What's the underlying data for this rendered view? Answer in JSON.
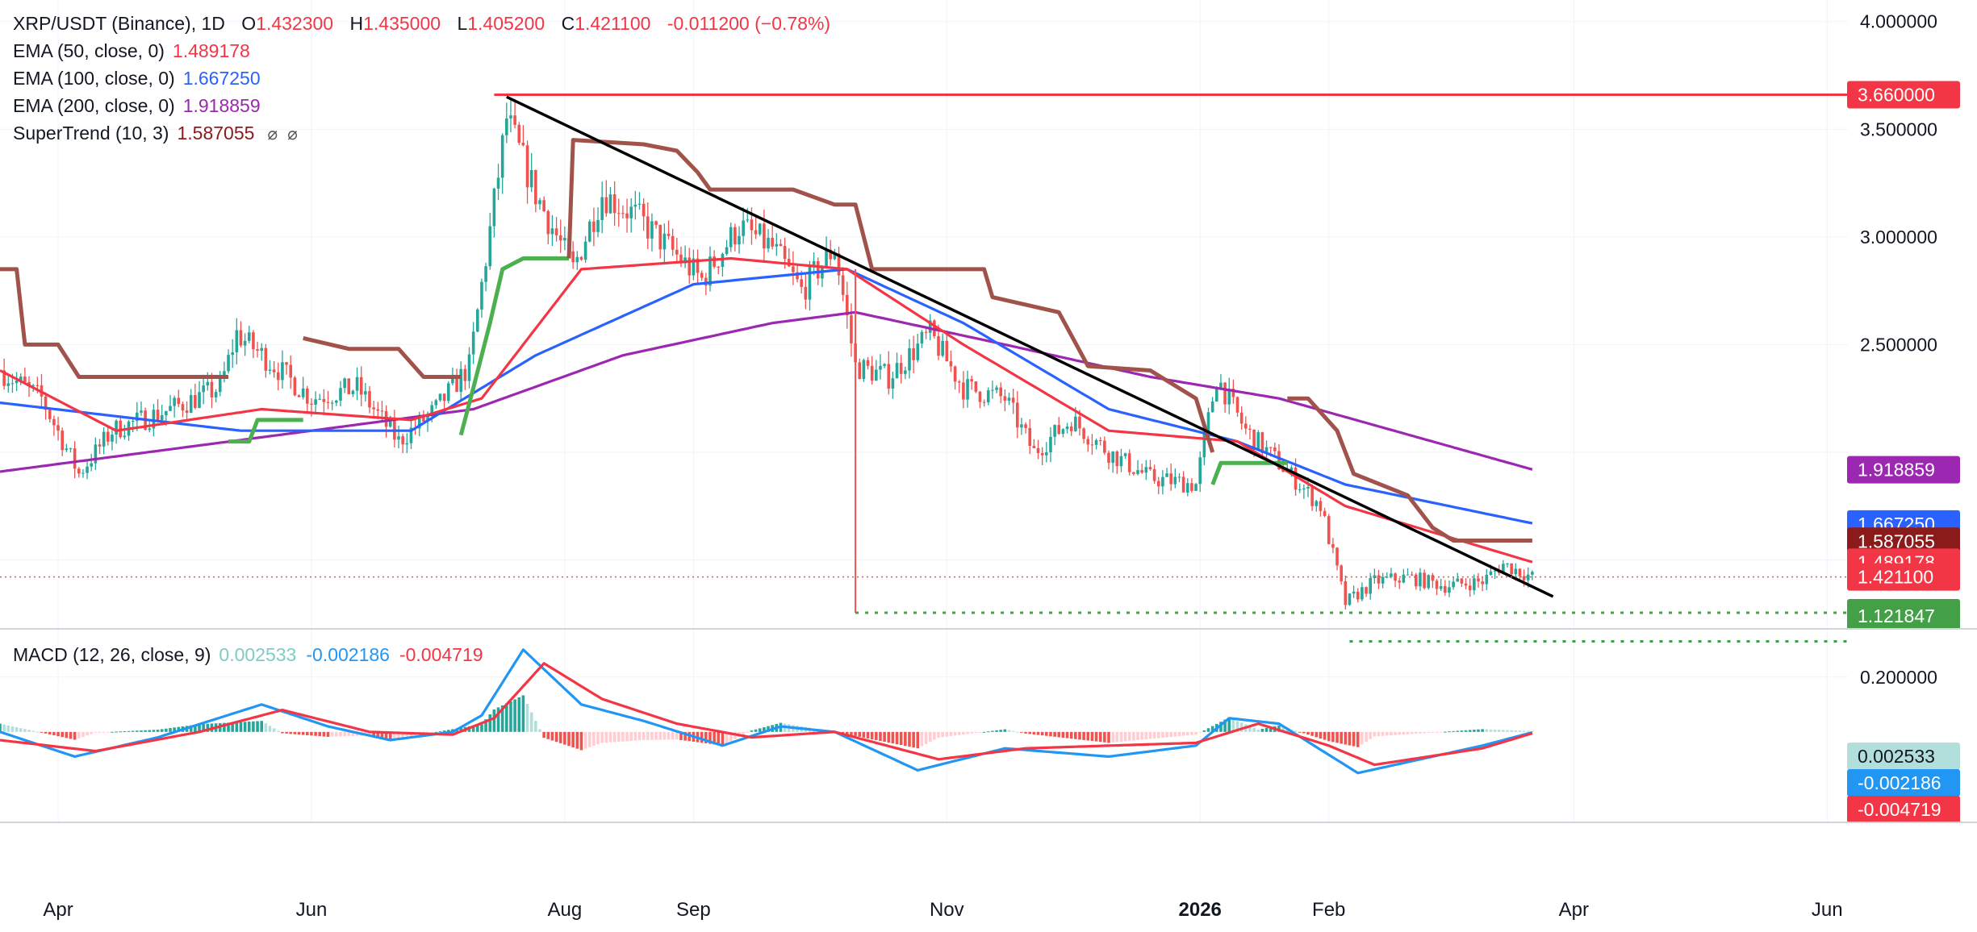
{
  "header": {
    "symbol": "XRP/USDT (Binance), 1D",
    "o_label": "O",
    "o": "1.432300",
    "h_label": "H",
    "h": "1.435000",
    "l_label": "L",
    "l": "1.405200",
    "c_label": "C",
    "c": "1.421100",
    "change": "-0.011200 (−0.78%)"
  },
  "indicators": {
    "ema50": {
      "label": "EMA (50, close, 0)",
      "value": "1.489178"
    },
    "ema100": {
      "label": "EMA (100, close, 0)",
      "value": "1.667250"
    },
    "ema200": {
      "label": "EMA (200, close, 0)",
      "value": "1.918859"
    },
    "supertrend": {
      "label": "SuperTrend (10, 3)",
      "value": "1.587055",
      "icon1": "⌀",
      "icon2": "⌀"
    },
    "macd": {
      "label": "MACD (12, 26, close, 9)",
      "hist": "0.002533",
      "macd": "-0.002186",
      "signal": "-0.004719"
    }
  },
  "colors": {
    "ema50": "#f23645",
    "ema100": "#2962ff",
    "ema200": "#9c27b0",
    "st_bear": "#a0524b",
    "st_bull": "#4caf50",
    "up": "#26a69a",
    "down": "#ef5350",
    "macd_line": "#2196f3",
    "signal_line": "#f23645",
    "hist_up_strong": "#26a69a",
    "hist_up_weak": "#b2dfdb",
    "hist_down_strong": "#ef5350",
    "hist_down_weak": "#ffcdd2",
    "resistance": "#f23645",
    "trendline": "#000000",
    "support": "#43a047"
  },
  "x_axis": {
    "ticks": [
      {
        "label": "Apr",
        "date": "2025-04-01"
      },
      {
        "label": "Jun",
        "date": "2025-06-01"
      },
      {
        "label": "Aug",
        "date": "2025-08-01"
      },
      {
        "label": "Sep",
        "date": "2025-09-01"
      },
      {
        "label": "Nov",
        "date": "2025-11-01"
      },
      {
        "label": "2026",
        "date": "2026-01-01",
        "bold": true
      },
      {
        "label": "Feb",
        "date": "2026-02-01"
      },
      {
        "label": "Apr",
        "date": "2026-04-01"
      },
      {
        "label": "Jun",
        "date": "2026-06-01"
      }
    ]
  },
  "price_axis": {
    "ticks": [
      "4.000000",
      "3.500000",
      "3.000000",
      "2.500000"
    ],
    "tick_values": [
      4.0,
      3.5,
      3.0,
      2.5
    ],
    "range": [
      1.18,
      4.1
    ]
  },
  "macd_axis": {
    "ticks": [
      "0.200000"
    ],
    "tick_values": [
      0.2
    ],
    "range": [
      -0.33,
      0.37
    ]
  },
  "badges": {
    "resistance": "3.660000",
    "ema200": "1.918859",
    "ema100": "1.667250",
    "supertrend": "1.587055",
    "ema50": "1.489178",
    "close": "1.421100",
    "support1": "1.254956",
    "support2": "1.121847",
    "macd_hist": "0.002533",
    "macd_line": "-0.002186",
    "macd_signal": "-0.004719"
  },
  "chart_data": {
    "type": "line",
    "title": "XRP/USDT (Binance), 1D",
    "x_range": [
      "2025-03-18",
      "2026-06-06"
    ],
    "ylim": [
      1.18,
      4.1
    ],
    "key_levels": {
      "resistance": 3.66,
      "support": [
        1.254956,
        1.121847
      ],
      "trendline_points": [
        [
          "2025-07-18",
          3.65
        ],
        [
          "2026-03-27",
          1.33
        ]
      ]
    },
    "ohlc_last": {
      "open": 1.4323,
      "high": 1.435,
      "low": 1.4052,
      "close": 1.4211
    },
    "close_anchors": [
      [
        "2025-03-18",
        2.38
      ],
      [
        "2025-03-28",
        2.25
      ],
      [
        "2025-04-06",
        1.9
      ],
      [
        "2025-04-14",
        2.1
      ],
      [
        "2025-04-28",
        2.2
      ],
      [
        "2025-05-10",
        2.3
      ],
      [
        "2025-05-14",
        2.55
      ],
      [
        "2025-05-22",
        2.42
      ],
      [
        "2025-06-01",
        2.25
      ],
      [
        "2025-06-12",
        2.3
      ],
      [
        "2025-06-22",
        2.05
      ],
      [
        "2025-07-01",
        2.2
      ],
      [
        "2025-07-09",
        2.4
      ],
      [
        "2025-07-13",
        2.9
      ],
      [
        "2025-07-18",
        3.55
      ],
      [
        "2025-07-25",
        3.2
      ],
      [
        "2025-08-03",
        2.85
      ],
      [
        "2025-08-10",
        3.2
      ],
      [
        "2025-08-18",
        3.1
      ],
      [
        "2025-08-26",
        2.95
      ],
      [
        "2025-09-03",
        2.8
      ],
      [
        "2025-09-12",
        3.05
      ],
      [
        "2025-09-20",
        2.95
      ],
      [
        "2025-09-27",
        2.75
      ],
      [
        "2025-10-05",
        2.95
      ],
      [
        "2025-10-10",
        2.4
      ],
      [
        "2025-10-18",
        2.35
      ],
      [
        "2025-10-28",
        2.55
      ],
      [
        "2025-11-05",
        2.3
      ],
      [
        "2025-11-15",
        2.25
      ],
      [
        "2025-11-22",
        2.0
      ],
      [
        "2025-12-01",
        2.15
      ],
      [
        "2025-12-10",
        2.0
      ],
      [
        "2025-12-20",
        1.88
      ],
      [
        "2025-12-31",
        1.85
      ],
      [
        "2026-01-05",
        2.35
      ],
      [
        "2026-01-12",
        2.1
      ],
      [
        "2026-01-20",
        1.95
      ],
      [
        "2026-01-30",
        1.75
      ],
      [
        "2026-02-05",
        1.3
      ],
      [
        "2026-02-12",
        1.4
      ],
      [
        "2026-02-20",
        1.42
      ],
      [
        "2026-03-01",
        1.38
      ],
      [
        "2026-03-10",
        1.4
      ],
      [
        "2026-03-15",
        1.48
      ],
      [
        "2026-03-22",
        1.42
      ]
    ],
    "ema200_anchors": [
      [
        "2025-03-18",
        1.91
      ],
      [
        "2025-06-01",
        2.1
      ],
      [
        "2025-07-10",
        2.2
      ],
      [
        "2025-08-15",
        2.45
      ],
      [
        "2025-09-20",
        2.6
      ],
      [
        "2025-10-10",
        2.65
      ],
      [
        "2025-11-15",
        2.5
      ],
      [
        "2025-12-20",
        2.35
      ],
      [
        "2026-01-20",
        2.25
      ],
      [
        "2026-03-22",
        1.92
      ]
    ],
    "ema100_anchors": [
      [
        "2025-03-18",
        2.23
      ],
      [
        "2025-05-15",
        2.1
      ],
      [
        "2025-06-25",
        2.1
      ],
      [
        "2025-07-25",
        2.45
      ],
      [
        "2025-09-01",
        2.78
      ],
      [
        "2025-10-08",
        2.85
      ],
      [
        "2025-11-05",
        2.6
      ],
      [
        "2025-12-10",
        2.2
      ],
      [
        "2026-01-10",
        2.05
      ],
      [
        "2026-02-05",
        1.85
      ],
      [
        "2026-03-22",
        1.67
      ]
    ],
    "ema50_anchors": [
      [
        "2025-03-18",
        2.38
      ],
      [
        "2025-04-15",
        2.1
      ],
      [
        "2025-05-20",
        2.2
      ],
      [
        "2025-06-25",
        2.15
      ],
      [
        "2025-07-12",
        2.25
      ],
      [
        "2025-08-05",
        2.85
      ],
      [
        "2025-09-10",
        2.9
      ],
      [
        "2025-10-08",
        2.85
      ],
      [
        "2025-11-05",
        2.5
      ],
      [
        "2025-12-10",
        2.1
      ],
      [
        "2026-01-10",
        2.05
      ],
      [
        "2026-02-05",
        1.75
      ],
      [
        "2026-03-22",
        1.49
      ]
    ],
    "supertrend_segments": [
      {
        "trend": "bear",
        "points": [
          [
            "2025-03-18",
            2.85
          ],
          [
            "2025-03-22",
            2.85
          ],
          [
            "2025-03-24",
            2.5
          ],
          [
            "2025-04-01",
            2.5
          ],
          [
            "2025-04-06",
            2.35
          ],
          [
            "2025-05-12",
            2.35
          ]
        ]
      },
      {
        "trend": "bull",
        "points": [
          [
            "2025-05-12",
            2.05
          ],
          [
            "2025-05-17",
            2.05
          ],
          [
            "2025-05-19",
            2.15
          ],
          [
            "2025-05-30",
            2.15
          ]
        ]
      },
      {
        "trend": "bear",
        "points": [
          [
            "2025-05-30",
            2.53
          ],
          [
            "2025-06-10",
            2.48
          ],
          [
            "2025-06-22",
            2.48
          ],
          [
            "2025-06-28",
            2.35
          ],
          [
            "2025-07-07",
            2.35
          ]
        ]
      },
      {
        "trend": "bull",
        "points": [
          [
            "2025-07-07",
            2.08
          ],
          [
            "2025-07-10",
            2.3
          ],
          [
            "2025-07-14",
            2.6
          ],
          [
            "2025-07-17",
            2.85
          ],
          [
            "2025-07-22",
            2.9
          ],
          [
            "2025-08-02",
            2.9
          ]
        ]
      },
      {
        "trend": "bear",
        "points": [
          [
            "2025-08-02",
            2.9
          ],
          [
            "2025-08-03",
            3.45
          ],
          [
            "2025-08-20",
            3.43
          ],
          [
            "2025-08-28",
            3.4
          ],
          [
            "2025-09-02",
            3.3
          ],
          [
            "2025-09-05",
            3.22
          ],
          [
            "2025-09-25",
            3.22
          ],
          [
            "2025-10-05",
            3.15
          ],
          [
            "2025-10-10",
            3.15
          ],
          [
            "2025-10-14",
            2.85
          ],
          [
            "2025-11-10",
            2.85
          ],
          [
            "2025-11-12",
            2.72
          ],
          [
            "2025-11-28",
            2.65
          ],
          [
            "2025-12-05",
            2.4
          ],
          [
            "2025-12-20",
            2.38
          ],
          [
            "2025-12-31",
            2.25
          ],
          [
            "2026-01-04",
            2.0
          ]
        ]
      },
      {
        "trend": "bull",
        "points": [
          [
            "2026-01-04",
            1.85
          ],
          [
            "2026-01-06",
            1.95
          ],
          [
            "2026-01-22",
            1.95
          ]
        ]
      },
      {
        "trend": "bear",
        "points": [
          [
            "2026-01-22",
            2.25
          ],
          [
            "2026-01-27",
            2.25
          ],
          [
            "2026-02-03",
            2.1
          ],
          [
            "2026-02-07",
            1.9
          ],
          [
            "2026-02-20",
            1.8
          ],
          [
            "2026-02-26",
            1.65
          ],
          [
            "2026-03-03",
            1.59
          ],
          [
            "2026-03-22",
            1.59
          ]
        ]
      }
    ],
    "macd": {
      "ylim": [
        -0.33,
        0.37
      ],
      "macd_anchors": [
        [
          "2025-03-18",
          0.0
        ],
        [
          "2025-04-05",
          -0.09
        ],
        [
          "2025-04-25",
          -0.02
        ],
        [
          "2025-05-20",
          0.1
        ],
        [
          "2025-06-05",
          0.02
        ],
        [
          "2025-06-20",
          -0.03
        ],
        [
          "2025-07-05",
          0.0
        ],
        [
          "2025-07-12",
          0.06
        ],
        [
          "2025-07-22",
          0.3
        ],
        [
          "2025-08-05",
          0.1
        ],
        [
          "2025-08-20",
          0.04
        ],
        [
          "2025-09-08",
          -0.05
        ],
        [
          "2025-09-22",
          0.02
        ],
        [
          "2025-10-05",
          0.0
        ],
        [
          "2025-10-25",
          -0.14
        ],
        [
          "2025-11-15",
          -0.06
        ],
        [
          "2025-12-10",
          -0.09
        ],
        [
          "2025-12-31",
          -0.05
        ],
        [
          "2026-01-08",
          0.05
        ],
        [
          "2026-01-20",
          0.03
        ],
        [
          "2026-02-08",
          -0.15
        ],
        [
          "2026-02-20",
          -0.11
        ],
        [
          "2026-03-10",
          -0.05
        ],
        [
          "2026-03-22",
          -0.002
        ]
      ],
      "signal_anchors": [
        [
          "2025-03-18",
          -0.03
        ],
        [
          "2025-04-10",
          -0.07
        ],
        [
          "2025-05-05",
          0.0
        ],
        [
          "2025-05-25",
          0.08
        ],
        [
          "2025-06-15",
          0.0
        ],
        [
          "2025-07-05",
          -0.01
        ],
        [
          "2025-07-15",
          0.05
        ],
        [
          "2025-07-27",
          0.25
        ],
        [
          "2025-08-10",
          0.12
        ],
        [
          "2025-08-28",
          0.03
        ],
        [
          "2025-09-15",
          -0.02
        ],
        [
          "2025-10-05",
          0.0
        ],
        [
          "2025-10-30",
          -0.1
        ],
        [
          "2025-11-20",
          -0.06
        ],
        [
          "2025-12-31",
          -0.04
        ],
        [
          "2026-01-15",
          0.03
        ],
        [
          "2026-02-01",
          -0.05
        ],
        [
          "2026-02-12",
          -0.12
        ],
        [
          "2026-03-10",
          -0.06
        ],
        [
          "2026-03-22",
          -0.005
        ]
      ]
    }
  }
}
